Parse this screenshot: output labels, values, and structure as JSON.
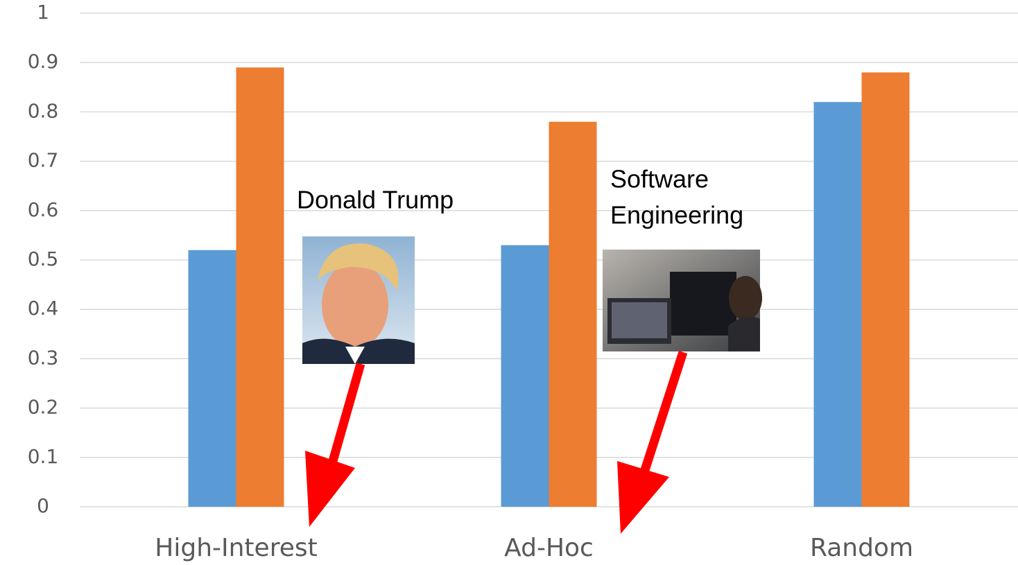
{
  "chart_data": {
    "type": "bar",
    "categories": [
      "High-Interest",
      "Ad-Hoc",
      "Random"
    ],
    "series": [
      {
        "color": "#5b9bd5",
        "values": [
          0.52,
          0.53,
          0.82
        ]
      },
      {
        "color": "#ed7d31",
        "values": [
          0.89,
          0.78,
          0.88
        ]
      }
    ],
    "ylim": [
      0,
      1
    ],
    "yticks": [
      0,
      0.1,
      0.2,
      0.3,
      0.4,
      0.5,
      0.6,
      0.7,
      0.8,
      0.9,
      1
    ],
    "grid": true,
    "annotations": [
      [
        "Donald Trump"
      ],
      [
        "Software",
        "Engineering"
      ]
    ]
  }
}
